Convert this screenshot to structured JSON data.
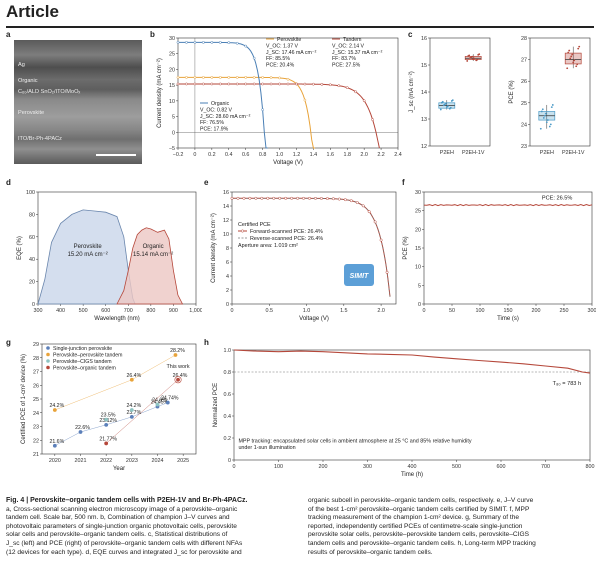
{
  "header": {
    "title": "Article"
  },
  "panels": {
    "a": {
      "label": "a",
      "layers": [
        "Ag",
        "Organic",
        "C₆₀/ALD SnO₂/ITO/MoOₓ",
        "Perovskite",
        "ITO/Br-Ph-4PACz"
      ]
    },
    "b": {
      "label": "b"
    },
    "c": {
      "label": "c"
    },
    "d": {
      "label": "d"
    },
    "e": {
      "label": "e"
    },
    "f": {
      "label": "f"
    },
    "g": {
      "label": "g"
    },
    "h": {
      "label": "h"
    }
  },
  "chart_data": [
    {
      "id": "b",
      "type": "line",
      "xlabel": "Voltage (V)",
      "ylabel": "Current density (mA cm⁻²)",
      "xlim": [
        -0.2,
        2.4
      ],
      "ylim": [
        -5,
        30
      ],
      "xticks": [
        "−0.2",
        "0",
        "0.2",
        "0.4",
        "0.6",
        "0.8",
        "1.0",
        "1.2",
        "1.4",
        "1.6",
        "1.8",
        "2.0",
        "2.2",
        "2.4"
      ],
      "yticks": [
        "−5",
        "0",
        "5",
        "10",
        "15",
        "20",
        "25",
        "30"
      ],
      "series": [
        {
          "name": "Perovskite",
          "color": "#e8a33a",
          "jsc": 17.46,
          "voc": 1.37,
          "ff": 0.855,
          "annotation": [
            "Perovskite",
            "V_OC: 1.37 V",
            "J_SC: 17.46 mA cm⁻²",
            "FF: 85.5%",
            "PCE: 20.4%"
          ]
        },
        {
          "name": "Tandem",
          "color": "#b5473a",
          "jsc": 15.37,
          "voc": 2.14,
          "ff": 0.837,
          "annotation": [
            "Tandem",
            "V_OC: 2.14 V",
            "J_SC: 15.37 mA cm⁻²",
            "FF: 83.7%",
            "PCE: 27.5%"
          ]
        },
        {
          "name": "Organic",
          "color": "#4a7fb5",
          "jsc": 28.6,
          "voc": 0.82,
          "ff": 0.765,
          "annotation": [
            "Organic",
            "V_OC: 0.82 V",
            "J_SC: 28.60 mA cm⁻²",
            "FF: 76.5%",
            "PCE: 17.9%"
          ]
        }
      ]
    },
    {
      "id": "c",
      "type": "box",
      "left": {
        "ylabel": "J_sc (mA cm⁻²)",
        "ylim": [
          12,
          16
        ],
        "yticks": [
          "12",
          "13",
          "14",
          "15",
          "16"
        ],
        "categories": [
          "P2EH",
          "P2EH-1V"
        ],
        "boxes": [
          {
            "q1": 13.4,
            "med": 13.5,
            "q3": 13.6,
            "min": 13.35,
            "max": 13.7,
            "color": "#4a9ac7"
          },
          {
            "q1": 15.2,
            "med": 15.25,
            "q3": 15.32,
            "min": 15.15,
            "max": 15.4,
            "color": "#b5473a"
          }
        ]
      },
      "right": {
        "ylabel": "PCE (%)",
        "ylim": [
          23,
          28
        ],
        "yticks": [
          "23",
          "24",
          "25",
          "26",
          "27",
          "28"
        ],
        "categories": [
          "P2EH",
          "P2EH-1V"
        ],
        "boxes": [
          {
            "q1": 24.2,
            "med": 24.4,
            "q3": 24.6,
            "min": 23.8,
            "max": 24.9,
            "color": "#4a9ac7"
          },
          {
            "q1": 26.8,
            "med": 27.0,
            "q3": 27.3,
            "min": 26.6,
            "max": 27.6,
            "color": "#b5473a"
          }
        ]
      }
    },
    {
      "id": "d",
      "type": "area",
      "xlabel": "Wavelength (nm)",
      "ylabel": "EQE (%)",
      "xlim": [
        300,
        1000
      ],
      "ylim": [
        0,
        100
      ],
      "xticks": [
        "300",
        "400",
        "500",
        "600",
        "700",
        "800",
        "900",
        "1,000"
      ],
      "yticks": [
        "0",
        "20",
        "40",
        "60",
        "80",
        "100"
      ],
      "series": [
        {
          "name": "Perovskite",
          "text": "15.20 mA cm⁻²",
          "color": "#c9d6ea",
          "stroke": "#6a86ad",
          "x": [
            300,
            330,
            360,
            400,
            450,
            500,
            550,
            600,
            650,
            680,
            700,
            720,
            730
          ],
          "y": [
            0,
            22,
            55,
            72,
            80,
            84,
            83,
            82,
            78,
            60,
            30,
            5,
            0
          ]
        },
        {
          "name": "Organic",
          "text": "15.14 mA cm⁻²",
          "color": "#ecc7c3",
          "stroke": "#b5473a",
          "x": [
            650,
            680,
            700,
            720,
            740,
            760,
            780,
            800,
            830,
            860,
            880,
            900,
            920,
            940
          ],
          "y": [
            0,
            12,
            30,
            50,
            62,
            66,
            68,
            67,
            64,
            66,
            58,
            30,
            8,
            0
          ]
        }
      ]
    },
    {
      "id": "e",
      "type": "line",
      "xlabel": "Voltage (V)",
      "ylabel": "Current density (mA cm⁻²)",
      "xlim": [
        0,
        2.2
      ],
      "ylim": [
        0,
        16
      ],
      "xticks": [
        "0",
        "0.5",
        "1.0",
        "1.5",
        "2.0"
      ],
      "yticks": [
        "0",
        "2",
        "4",
        "6",
        "8",
        "10",
        "12",
        "14",
        "16"
      ],
      "legend": [
        "Certified PCE",
        "Forward-scanned PCE: 26.4%",
        "Reverse-scanned PCE: 26.4%",
        "Aperture area: 1.019 cm²"
      ],
      "series": [
        {
          "name": "Forward-scanned",
          "color": "#b5473a",
          "jsc": 15.1,
          "voc": 2.13,
          "ff": 0.82
        }
      ],
      "logo": "SIMIT"
    },
    {
      "id": "f",
      "type": "line",
      "xlabel": "Time (s)",
      "ylabel": "PCE (%)",
      "xlim": [
        0,
        300
      ],
      "ylim": [
        0,
        30
      ],
      "xticks": [
        "0",
        "50",
        "100",
        "150",
        "200",
        "250",
        "300"
      ],
      "yticks": [
        "0",
        "5",
        "10",
        "15",
        "20",
        "25",
        "30"
      ],
      "annotation": "PCE: 26.5%",
      "value": 26.5
    },
    {
      "id": "g",
      "type": "scatter",
      "xlabel": "Year",
      "ylabel": "Certified PCE of 1-cm² device (%)",
      "xlim": [
        2019.5,
        2025.5
      ],
      "ylim": [
        21,
        29
      ],
      "xticks": [
        "2020",
        "2021",
        "2022",
        "2023",
        "2024",
        "2025"
      ],
      "yticks": [
        "21",
        "22",
        "23",
        "24",
        "25",
        "26",
        "27",
        "28",
        "29"
      ],
      "series": [
        {
          "name": "Single-junction perovskite",
          "color": "#5b7fb9",
          "points": [
            [
              2020,
              21.6
            ],
            [
              2021,
              22.6
            ],
            [
              2022,
              23.12
            ],
            [
              2023,
              23.7
            ],
            [
              2024,
              24.45
            ],
            [
              2024.4,
              24.74
            ]
          ],
          "labels": [
            "21.6%",
            "22.6%",
            "23.12%",
            "23.7%",
            "24.45%",
            "24.74%"
          ]
        },
        {
          "name": "Perovskite–perovskite tandem",
          "color": "#e8a33a",
          "points": [
            [
              2020,
              24.2
            ],
            [
              2023,
              26.4
            ],
            [
              2024.7,
              28.2
            ]
          ],
          "labels": [
            "24.2%",
            "26.4%",
            "28.2%"
          ]
        },
        {
          "name": "Perovskite–CIGS tandem",
          "color": "#8ec4c2",
          "points": [
            [
              2022,
              23.5
            ],
            [
              2023,
              24.2
            ],
            [
              2024,
              24.6
            ]
          ],
          "labels": [
            "23.5%",
            "24.2%",
            "24.6%"
          ]
        },
        {
          "name": "Perovskite–organic tandem",
          "color": "#b5473a",
          "points": [
            [
              2022,
              21.77
            ],
            [
              2024.8,
              26.4
            ]
          ],
          "labels": [
            "21.77%",
            "26.4%"
          ]
        }
      ],
      "annotation": "This work"
    },
    {
      "id": "h",
      "type": "line",
      "xlabel": "Time (h)",
      "ylabel": "Normalized PCE",
      "xlim": [
        0,
        800
      ],
      "ylim": [
        0,
        1.0
      ],
      "xticks": [
        "0",
        "100",
        "200",
        "300",
        "400",
        "500",
        "600",
        "700",
        "800"
      ],
      "yticks": [
        "0",
        "0.2",
        "0.4",
        "0.6",
        "0.8",
        "1.0"
      ],
      "x": [
        0,
        50,
        100,
        150,
        200,
        250,
        300,
        350,
        400,
        450,
        500,
        550,
        600,
        650,
        700,
        750,
        783,
        800
      ],
      "y": [
        1.0,
        0.99,
        0.985,
        0.99,
        0.985,
        0.975,
        0.965,
        0.96,
        0.955,
        0.935,
        0.92,
        0.905,
        0.89,
        0.875,
        0.855,
        0.835,
        0.8,
        0.79
      ],
      "reference_line": 0.8,
      "annotation": "T₈₀ = 783 h",
      "note": [
        "MPP tracking: encapsulated solar cells in ambient atmosphere at 25 °C and 85% relative humidity",
        "under 1-sun illumination"
      ]
    }
  ],
  "caption": {
    "fig": "Fig. 4 | Perovskite–organic tandem cells with P2EH-1V and Br-Ph-4PACz.",
    "left_lines": [
      "a, Cross-sectional scanning electron microscopy image of a perovskite–organic",
      "tandem cell. Scale bar, 500 nm. b, Combination of champion J–V curves and",
      "photovoltaic parameters of single-junction organic photovoltaic cells, perovskite",
      "solar cells and perovskite–organic tandem cells. c, Statistical distributions of",
      "J_sc (left) and PCE (right) of perovskite–organic tandem cells with different NFAs",
      "(12 devices for each type). d, EQE curves and integrated J_sc for perovskite and"
    ],
    "right_lines": [
      "organic subcell in perovskite–organic tandem cells, respectively. e, J–V curve",
      "of the best 1-cm² perovskite–organic tandem cells certified by SIMIT. f, MPP",
      "tracking measurement of the champion 1-cm² device. g, Summary of the",
      "reported, independently certified PCEs of centimetre-scale single-junction",
      "perovskite solar cells, perovskite–perovskite tandem cells, perovskite–CIGS",
      "tandem cells and perovskite–organic tandem cells. h, Long-term MPP tracking",
      "results of perovskite–organic tandem cells."
    ]
  }
}
